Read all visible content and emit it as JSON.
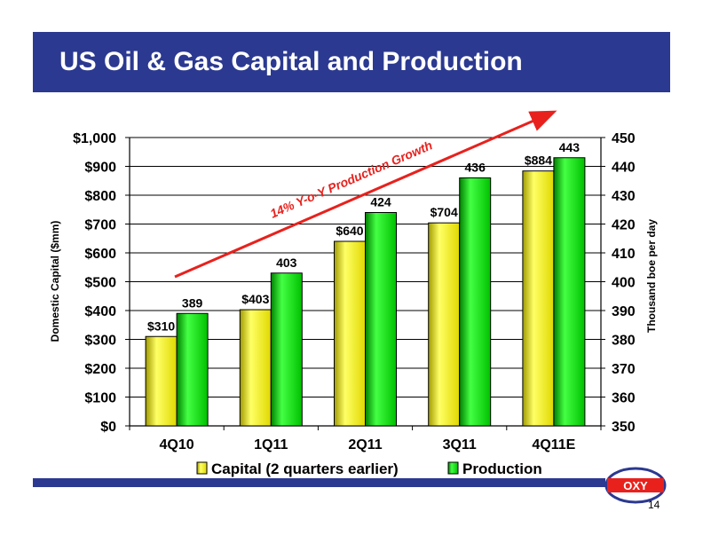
{
  "title": "US Oil & Gas Capital and Production",
  "page_number": "14",
  "logo_text": "OXY",
  "chart_data": {
    "type": "bar",
    "categories": [
      "4Q10",
      "1Q11",
      "2Q11",
      "3Q11",
      "4Q11E"
    ],
    "series": [
      {
        "name": "Capital (2 quarters earlier)",
        "axis": "left",
        "values": [
          310,
          403,
          640,
          704,
          884
        ],
        "labels": [
          "$310",
          "$403",
          "$640",
          "$704",
          "$884"
        ],
        "color": "#e8e000"
      },
      {
        "name": "Production",
        "axis": "right",
        "values": [
          389,
          403,
          424,
          436,
          443
        ],
        "labels": [
          "389",
          "403",
          "424",
          "436",
          "443"
        ],
        "color": "#00c800"
      }
    ],
    "ylabel": "Domestic Capital ($mm)",
    "ylabel_right": "Thousand boe per day",
    "ylim": [
      0,
      1000
    ],
    "ylim_right": [
      350,
      450
    ],
    "yticks": [
      "$0",
      "$100",
      "$200",
      "$300",
      "$400",
      "$500",
      "$600",
      "$700",
      "$800",
      "$900",
      "$1,000"
    ],
    "yticks_right": [
      "350",
      "360",
      "370",
      "380",
      "390",
      "400",
      "410",
      "420",
      "430",
      "440",
      "450"
    ],
    "annotation": "14% Y-o-Y Production Growth",
    "annotation_color": "#e8211d",
    "grid": true,
    "legend_position": "bottom"
  }
}
